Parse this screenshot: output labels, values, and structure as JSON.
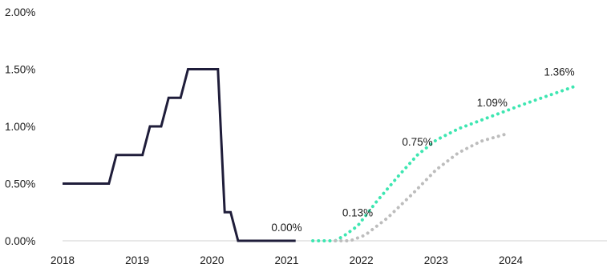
{
  "chart_data": {
    "type": "line",
    "ylim": [
      0,
      2
    ],
    "xlim": [
      2018,
      2024.9
    ],
    "y_ticks": [
      {
        "value": 0,
        "label": "0.00%"
      },
      {
        "value": 0.5,
        "label": "0.50%"
      },
      {
        "value": 1.0,
        "label": "1.00%"
      },
      {
        "value": 1.5,
        "label": "1.50%"
      },
      {
        "value": 2.0,
        "label": "2.00%"
      }
    ],
    "x_ticks": [
      {
        "value": 2018,
        "label": "2018"
      },
      {
        "value": 2019,
        "label": "2019"
      },
      {
        "value": 2020,
        "label": "2020"
      },
      {
        "value": 2021,
        "label": "2021"
      },
      {
        "value": 2022,
        "label": "2022"
      },
      {
        "value": 2023,
        "label": "2023"
      },
      {
        "value": 2024,
        "label": "2024"
      }
    ],
    "grid": false,
    "legend": "none",
    "series": [
      {
        "style": "solid",
        "color": "#1f1d3a",
        "points": [
          [
            2018.0,
            0.5
          ],
          [
            2018.62,
            0.5
          ],
          [
            2018.72,
            0.75
          ],
          [
            2019.07,
            0.75
          ],
          [
            2019.17,
            1.0
          ],
          [
            2019.32,
            1.0
          ],
          [
            2019.42,
            1.25
          ],
          [
            2019.58,
            1.25
          ],
          [
            2019.68,
            1.5
          ],
          [
            2020.08,
            1.5
          ],
          [
            2020.17,
            0.25
          ],
          [
            2020.25,
            0.25
          ],
          [
            2020.35,
            0.0
          ],
          [
            2021.12,
            0.0
          ]
        ]
      },
      {
        "style": "dotted",
        "color": "#3ee6b1",
        "points": [
          [
            2021.35,
            0.0
          ],
          [
            2021.65,
            0.0
          ],
          [
            2021.78,
            0.05
          ],
          [
            2021.95,
            0.13
          ],
          [
            2022.2,
            0.34
          ],
          [
            2022.5,
            0.57
          ],
          [
            2022.75,
            0.75
          ],
          [
            2023.0,
            0.88
          ],
          [
            2023.3,
            0.98
          ],
          [
            2023.75,
            1.09
          ],
          [
            2024.2,
            1.2
          ],
          [
            2024.9,
            1.36
          ]
        ]
      },
      {
        "style": "dotted",
        "color": "#bdbdbd",
        "points": [
          [
            2021.65,
            0.0
          ],
          [
            2021.85,
            0.0
          ],
          [
            2022.05,
            0.05
          ],
          [
            2022.35,
            0.2
          ],
          [
            2022.7,
            0.42
          ],
          [
            2023.0,
            0.62
          ],
          [
            2023.3,
            0.77
          ],
          [
            2023.6,
            0.87
          ],
          [
            2023.92,
            0.93
          ]
        ]
      }
    ],
    "annotations": [
      {
        "label": "0.00%",
        "x": 2021.0,
        "y": 0.0
      },
      {
        "label": "0.13%",
        "x": 2021.95,
        "y": 0.13
      },
      {
        "label": "0.75%",
        "x": 2022.75,
        "y": 0.75
      },
      {
        "label": "1.09%",
        "x": 2023.75,
        "y": 1.09
      },
      {
        "label": "1.36%",
        "x": 2024.65,
        "y": 1.36
      }
    ]
  }
}
